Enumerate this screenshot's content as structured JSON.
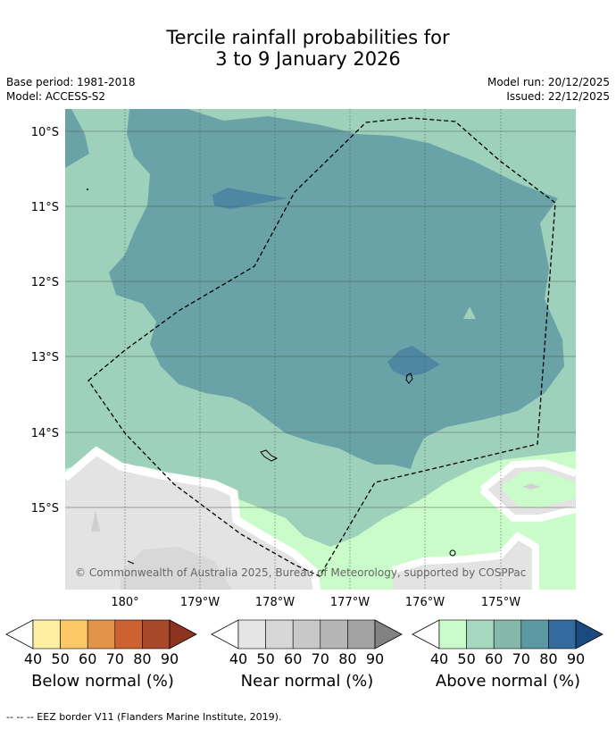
{
  "title": {
    "line1": "Tercile rainfall probabilities for",
    "line2": "3 to 9 January 2026"
  },
  "meta": {
    "base_period": "Base period: 1981-2018",
    "model": "Model: ACCESS-S2",
    "model_run": "Model run: 20/12/2025",
    "issued": "Issued: 22/12/2025"
  },
  "map": {
    "lat_labels": [
      "10°S",
      "11°S",
      "12°S",
      "13°S",
      "14°S",
      "15°S"
    ],
    "lon_labels": [
      "180°",
      "179°W",
      "178°W",
      "177°W",
      "176°W",
      "175°W"
    ],
    "copyright": "© Commonwealth of Australia 2025, Bureau of Meteorology, supported by COSPPac"
  },
  "colorbars": [
    {
      "name": "below",
      "label": "Below normal (%)",
      "ticks": [
        "40",
        "50",
        "60",
        "70",
        "80",
        "90"
      ],
      "colors": [
        "#feeea0",
        "#fdc966",
        "#e1944a",
        "#cc6231",
        "#a9472a",
        "#8e3320"
      ]
    },
    {
      "name": "near",
      "label": "Near normal (%)",
      "ticks": [
        "40",
        "50",
        "60",
        "70",
        "80",
        "90"
      ],
      "colors": [
        "#e5e5e5",
        "#d7d7d7",
        "#c8c8c8",
        "#b5b5b5",
        "#a2a2a2",
        "#828282"
      ]
    },
    {
      "name": "above",
      "label": "Above normal (%)",
      "ticks": [
        "40",
        "50",
        "60",
        "70",
        "80",
        "90"
      ],
      "colors": [
        "#c9fcc9",
        "#a6d8bf",
        "#84b8ab",
        "#5c97a4",
        "#336b9e",
        "#1a4a80"
      ]
    }
  ],
  "footer": "--  --  -- EEZ border V11 (Flanders Marine Institute, 2019)."
}
